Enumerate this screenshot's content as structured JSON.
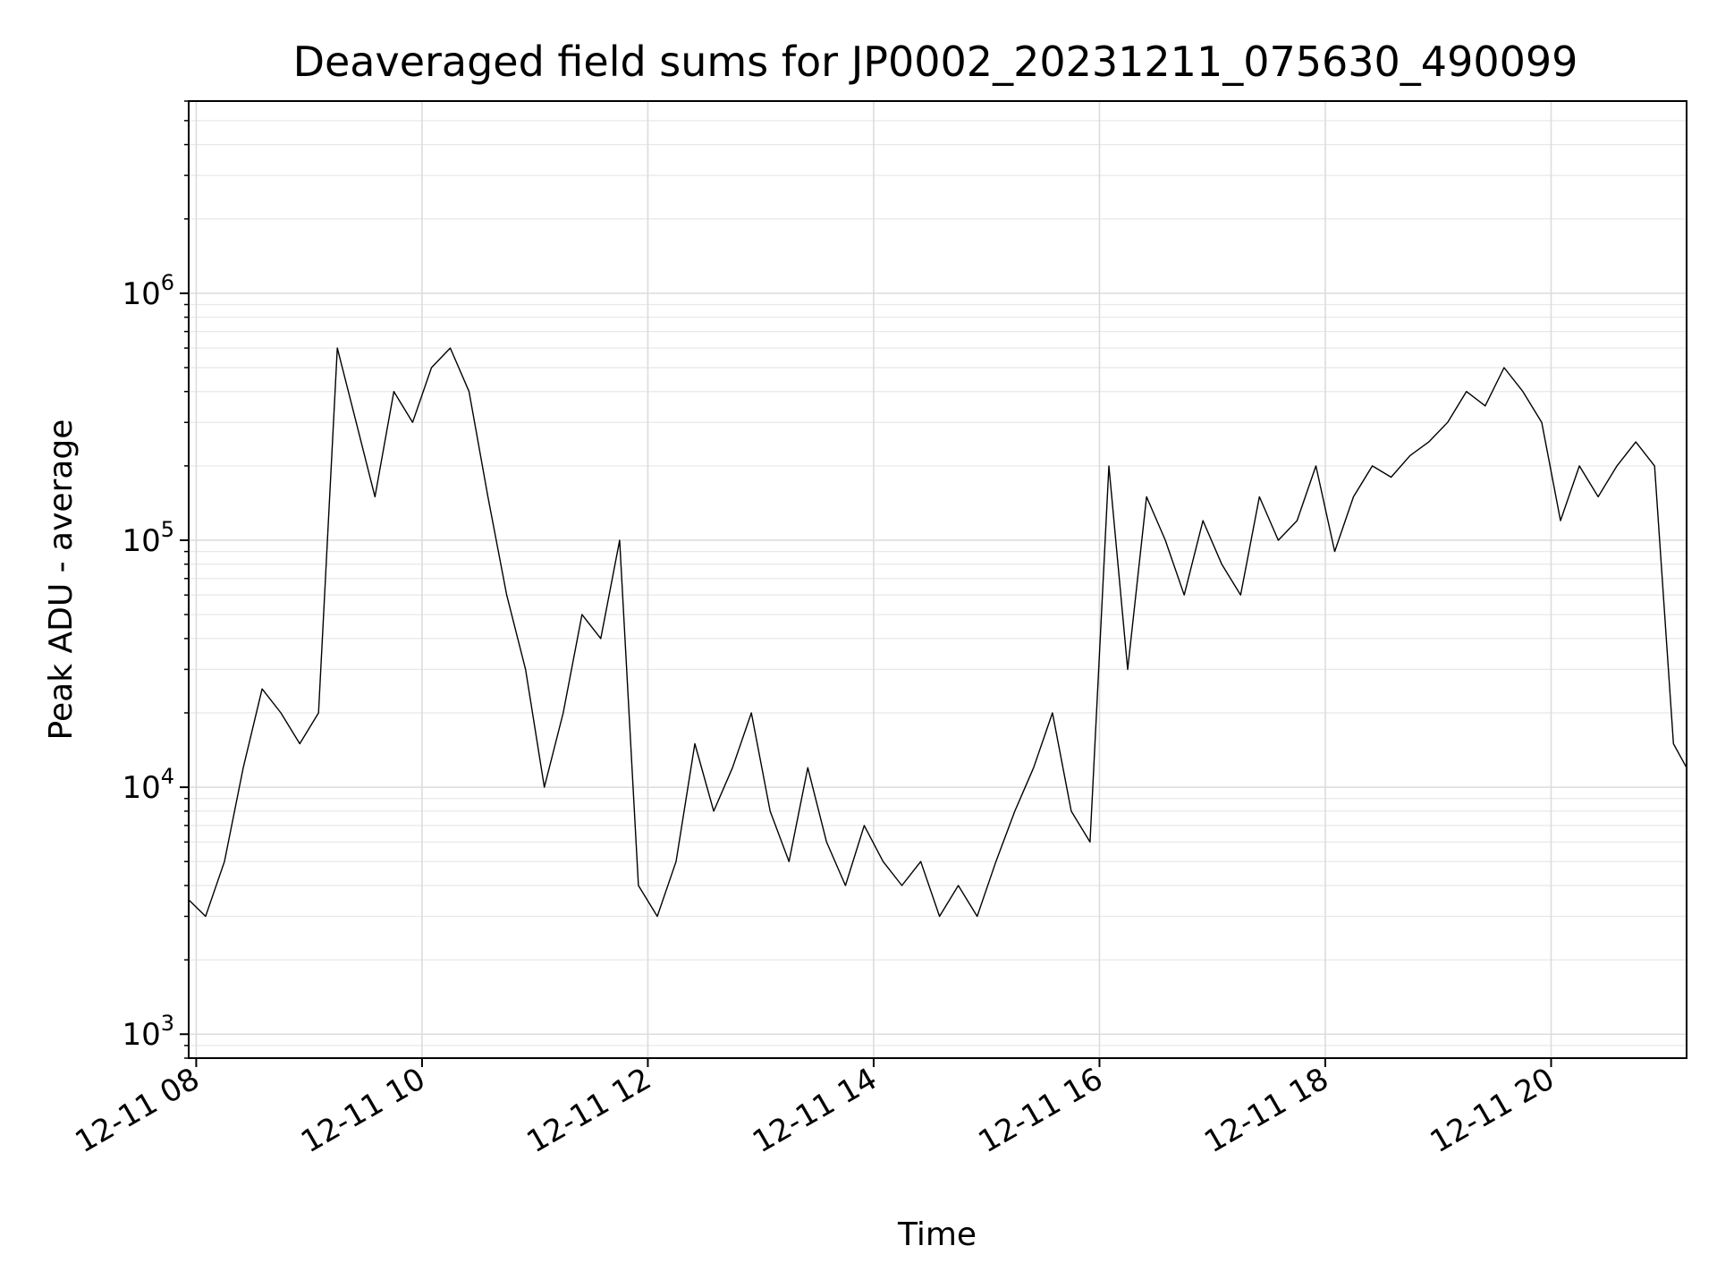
{
  "chart_data": {
    "type": "line",
    "title": "Deaveraged field sums for JP0002_20231211_075630_490099",
    "xlabel": "Time",
    "ylabel": "Peak ADU - average",
    "yscale": "log",
    "ylim": [
      800,
      6000000
    ],
    "xlim": [
      "2023-12-11 07:56",
      "2023-12-11 21:12"
    ],
    "x_ticks": [
      {
        "time": "2023-12-11 08:00",
        "label": "12-11 08"
      },
      {
        "time": "2023-12-11 10:00",
        "label": "12-11 10"
      },
      {
        "time": "2023-12-11 12:00",
        "label": "12-11 12"
      },
      {
        "time": "2023-12-11 14:00",
        "label": "12-11 14"
      },
      {
        "time": "2023-12-11 16:00",
        "label": "12-11 16"
      },
      {
        "time": "2023-12-11 18:00",
        "label": "12-11 18"
      },
      {
        "time": "2023-12-11 20:00",
        "label": "12-11 20"
      }
    ],
    "y_ticks": [
      {
        "value": 1000,
        "base": "10",
        "exp": "3"
      },
      {
        "value": 10000,
        "base": "10",
        "exp": "4"
      },
      {
        "value": 100000,
        "base": "10",
        "exp": "5"
      },
      {
        "value": 1000000,
        "base": "10",
        "exp": "6"
      }
    ],
    "grid": true,
    "line_color": "#000000",
    "series": [
      {
        "x": [
          "2023-12-11 07:56",
          "2023-12-11 08:05",
          "2023-12-11 08:15",
          "2023-12-11 08:25",
          "2023-12-11 08:35",
          "2023-12-11 08:45",
          "2023-12-11 08:55",
          "2023-12-11 09:05",
          "2023-12-11 09:15",
          "2023-12-11 09:25",
          "2023-12-11 09:35",
          "2023-12-11 09:45",
          "2023-12-11 09:55",
          "2023-12-11 10:05",
          "2023-12-11 10:15",
          "2023-12-11 10:25",
          "2023-12-11 10:35",
          "2023-12-11 10:45",
          "2023-12-11 10:55",
          "2023-12-11 11:05",
          "2023-12-11 11:15",
          "2023-12-11 11:25",
          "2023-12-11 11:35",
          "2023-12-11 11:45",
          "2023-12-11 11:55",
          "2023-12-11 12:05",
          "2023-12-11 12:15",
          "2023-12-11 12:25",
          "2023-12-11 12:35",
          "2023-12-11 12:45",
          "2023-12-11 12:55",
          "2023-12-11 13:05",
          "2023-12-11 13:15",
          "2023-12-11 13:25",
          "2023-12-11 13:35",
          "2023-12-11 13:45",
          "2023-12-11 13:55",
          "2023-12-11 14:05",
          "2023-12-11 14:15",
          "2023-12-11 14:25",
          "2023-12-11 14:35",
          "2023-12-11 14:45",
          "2023-12-11 14:55",
          "2023-12-11 15:05",
          "2023-12-11 15:15",
          "2023-12-11 15:25",
          "2023-12-11 15:35",
          "2023-12-11 15:45",
          "2023-12-11 15:55",
          "2023-12-11 16:05",
          "2023-12-11 16:15",
          "2023-12-11 16:25",
          "2023-12-11 16:35",
          "2023-12-11 16:45",
          "2023-12-11 16:55",
          "2023-12-11 17:05",
          "2023-12-11 17:15",
          "2023-12-11 17:25",
          "2023-12-11 17:35",
          "2023-12-11 17:45",
          "2023-12-11 17:55",
          "2023-12-11 18:05",
          "2023-12-11 18:15",
          "2023-12-11 18:25",
          "2023-12-11 18:35",
          "2023-12-11 18:45",
          "2023-12-11 18:55",
          "2023-12-11 19:05",
          "2023-12-11 19:15",
          "2023-12-11 19:25",
          "2023-12-11 19:35",
          "2023-12-11 19:45",
          "2023-12-11 19:55",
          "2023-12-11 20:05",
          "2023-12-11 20:15",
          "2023-12-11 20:25",
          "2023-12-11 20:35",
          "2023-12-11 20:45",
          "2023-12-11 20:55",
          "2023-12-11 21:05",
          "2023-12-11 21:12"
        ],
        "y": [
          3500,
          3000,
          5000,
          12000,
          25000,
          20000,
          15000,
          20000,
          600000,
          300000,
          150000,
          400000,
          300000,
          500000,
          600000,
          400000,
          150000,
          60000,
          30000,
          10000,
          20000,
          50000,
          40000,
          100000,
          4000,
          3000,
          5000,
          15000,
          8000,
          12000,
          20000,
          8000,
          5000,
          12000,
          6000,
          4000,
          7000,
          5000,
          4000,
          5000,
          3000,
          4000,
          3000,
          5000,
          8000,
          12000,
          20000,
          8000,
          6000,
          200000,
          30000,
          150000,
          100000,
          60000,
          120000,
          80000,
          60000,
          150000,
          100000,
          120000,
          200000,
          90000,
          150000,
          200000,
          180000,
          220000,
          250000,
          300000,
          400000,
          350000,
          500000,
          400000,
          300000,
          120000,
          200000,
          150000,
          200000,
          250000,
          200000,
          15000,
          12000
        ]
      }
    ]
  }
}
